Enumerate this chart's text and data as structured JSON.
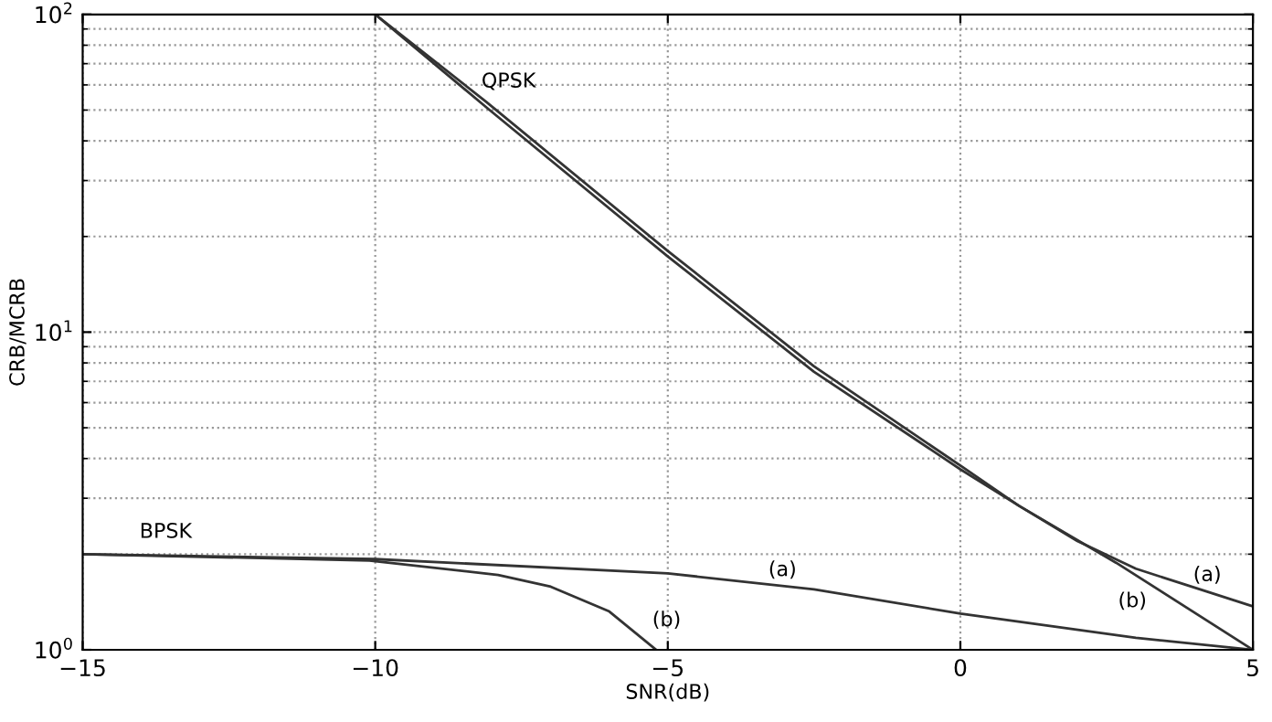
{
  "chart_data": {
    "type": "line",
    "xlabel": "SNR(dB)",
    "ylabel": "CRB/MCRB",
    "log": "y",
    "xlim": [
      -15,
      5
    ],
    "xticks": [
      {
        "value": -15,
        "label": "−15"
      },
      {
        "value": -10,
        "label": "−10"
      },
      {
        "value": -5,
        "label": "−5"
      },
      0,
      5
    ],
    "ylim": [
      1,
      100
    ],
    "yticks": [
      {
        "value": 1,
        "label": "10$^{0}$"
      },
      {
        "value": 10,
        "label": "10$^{1}$"
      },
      {
        "value": 100,
        "label": "10$^{2}$"
      }
    ],
    "grid": true,
    "line_style": "solid",
    "marker": "none",
    "series": [
      {
        "color": "#333333",
        "x": [
          -10,
          -8.1,
          -5,
          -2.5,
          0,
          1,
          2,
          3,
          4,
          5
        ],
        "values": [
          100,
          51,
          17.3,
          7.5,
          3.7,
          2.84,
          2.2,
          1.8,
          1.57,
          1.37
        ]
      },
      {
        "color": "#333333",
        "x": [
          -10,
          -8.1,
          -5,
          -2.5,
          0,
          1,
          2.66,
          5
        ],
        "values": [
          100,
          53,
          18,
          7.8,
          3.8,
          2.84,
          1.88,
          1.0
        ]
      },
      {
        "color": "#333333",
        "x": [
          -15,
          -10,
          -5,
          -2.5,
          0,
          3,
          5
        ],
        "values": [
          2.0,
          1.93,
          1.74,
          1.55,
          1.3,
          1.09,
          1.0
        ]
      },
      {
        "color": "#333333",
        "x": [
          -15,
          -10.1,
          -7.9,
          -7.0,
          -6.0,
          -5.2
        ],
        "values": [
          2.0,
          1.91,
          1.72,
          1.58,
          1.32,
          1.0
        ]
      }
    ],
    "annotations": [
      "QPSK",
      "BPSK",
      "(a)",
      "(b)",
      "(a)",
      "(b)"
    ]
  }
}
